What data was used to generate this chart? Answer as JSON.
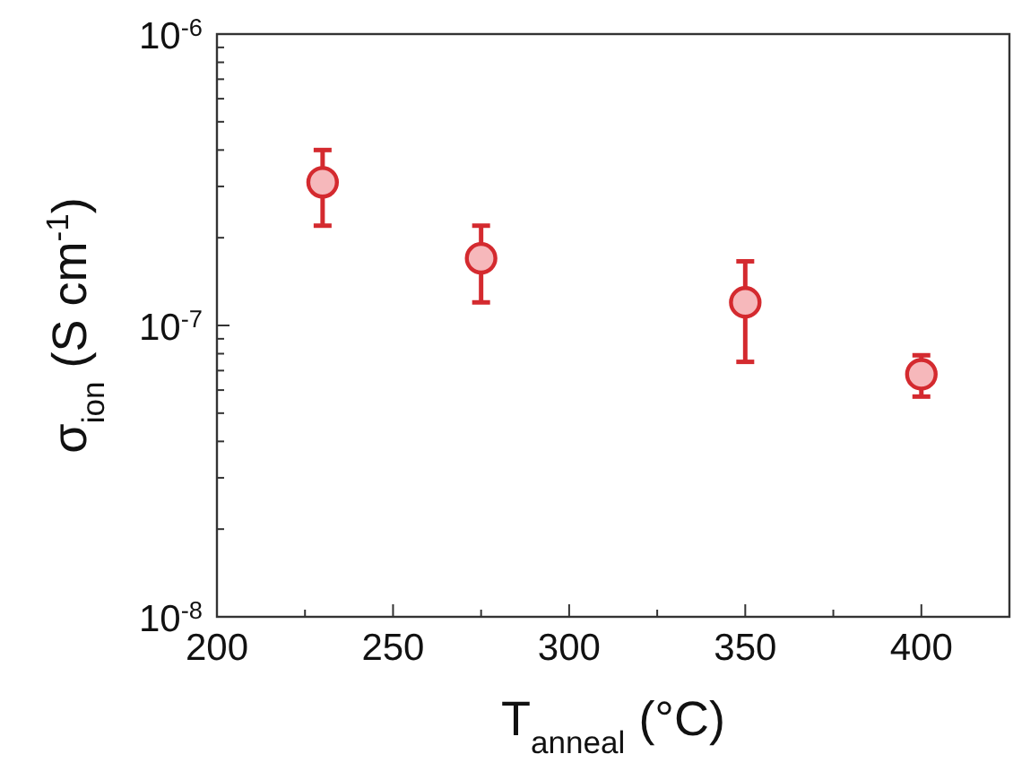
{
  "chart_data": {
    "type": "scatter",
    "xlabel": "T$_{anneal}$ (°C)",
    "ylabel": "σ$_{ion}$ (S cm$^{-1}$)",
    "log": "y",
    "marker": "circle",
    "grid": false,
    "x": [
      230,
      275,
      350,
      400
    ],
    "series": [
      {
        "color": "#d42a2f",
        "values": [
          3.1e-07,
          1.7e-07,
          1.2e-07,
          6.8e-08
        ],
        "errors": [
          [
            2.2e-07,
            4e-07
          ],
          [
            1.2e-07,
            2.2e-07
          ],
          [
            7.5e-08,
            1.66e-07
          ],
          [
            5.7e-08,
            7.9e-08
          ]
        ]
      }
    ],
    "xlim": [
      200,
      425
    ],
    "xticks": [
      200,
      {
        "value": 225,
        "label": null
      },
      250,
      {
        "value": 275,
        "label": null
      },
      300,
      {
        "value": 325,
        "label": null
      },
      350,
      {
        "value": 375,
        "label": null
      },
      400
    ],
    "ylim": [
      1e-08,
      1e-06
    ],
    "yticks": [
      {
        "value": 1e-08,
        "label": "10$^{-8}$"
      },
      {
        "value": 2e-08,
        "label": null
      },
      {
        "value": 3e-08,
        "label": null
      },
      {
        "value": 4e-08,
        "label": null
      },
      {
        "value": 5e-08,
        "label": null
      },
      {
        "value": 6e-08,
        "label": null
      },
      {
        "value": 7e-08,
        "label": null
      },
      {
        "value": 8e-08,
        "label": null
      },
      {
        "value": 9e-08,
        "label": null
      },
      {
        "value": 1e-07,
        "label": "10$^{-7}$"
      },
      {
        "value": 2e-07,
        "label": null
      },
      {
        "value": 3e-07,
        "label": null
      },
      {
        "value": 4e-07,
        "label": null
      },
      {
        "value": 5e-07,
        "label": null
      },
      {
        "value": 6e-07,
        "label": null
      },
      {
        "value": 7e-07,
        "label": null
      },
      {
        "value": 8e-07,
        "label": null
      },
      {
        "value": 9e-07,
        "label": null
      },
      {
        "value": 1e-06,
        "label": "10$^{-6}$"
      }
    ]
  }
}
